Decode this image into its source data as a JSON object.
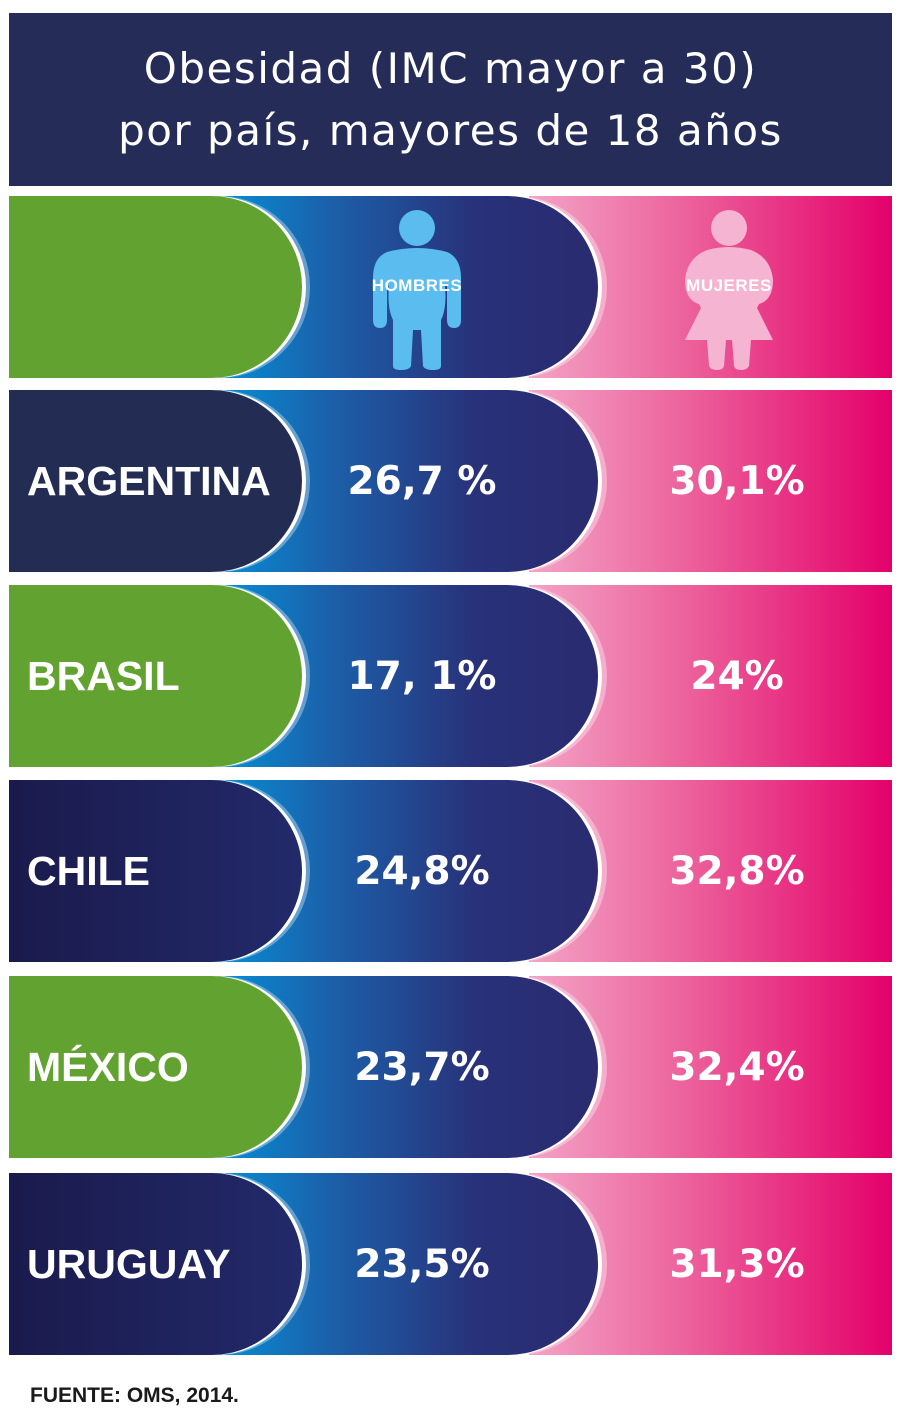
{
  "title": {
    "line1": "Obesidad (IMC mayor a 30)",
    "line2": "por país, mayores de 18 años"
  },
  "header": {
    "men_label": "HOMBRES",
    "women_label": "MUJERES",
    "men_icon": "male-figure-icon",
    "women_icon": "female-figure-icon"
  },
  "rows": [
    {
      "country": "ARGENTINA",
      "men": "26,7 %",
      "women": "30,1%"
    },
    {
      "country": "BRASIL",
      "men": "17, 1%",
      "women": "24%"
    },
    {
      "country": "CHILE",
      "men": "24,8%",
      "women": "32,8%"
    },
    {
      "country": "MÉXICO",
      "men": "23,7%",
      "women": "32,4%"
    },
    {
      "country": "URUGUAY",
      "men": "23,5%",
      "women": "31,3%"
    }
  ],
  "source": "FUENTE: OMS, 2014.",
  "colors": {
    "title_bg": "#252c57",
    "green": "#62a230",
    "navy": "#232d54",
    "men_gradient": [
      "#0098dd",
      "#2a2b70"
    ],
    "women_gradient": [
      "#f3a3c6",
      "#e4006a"
    ],
    "men_icon": "#5bbcf0",
    "women_icon": "#f4b4d2"
  },
  "chart_data": {
    "type": "table",
    "title": "Obesidad (IMC mayor a 30) por país, mayores de 18 años",
    "columns": [
      "HOMBRES",
      "MUJERES"
    ],
    "categories": [
      "ARGENTINA",
      "BRASIL",
      "CHILE",
      "MÉXICO",
      "URUGUAY"
    ],
    "series": [
      {
        "name": "HOMBRES",
        "values": [
          26.7,
          17.1,
          24.8,
          23.7,
          23.5
        ]
      },
      {
        "name": "MUJERES",
        "values": [
          30.1,
          24,
          32.8,
          32.4,
          31.3
        ]
      }
    ],
    "unit": "%"
  }
}
